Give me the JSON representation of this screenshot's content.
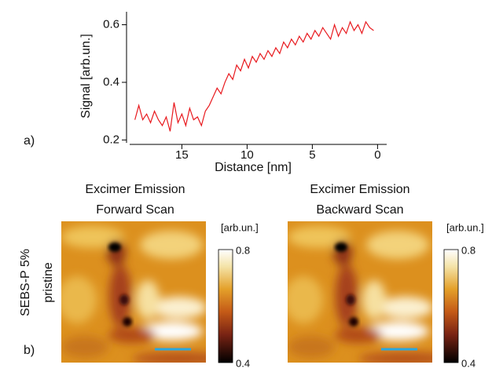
{
  "chart_data": {
    "type": "line",
    "ylabel": "Signal [arb.un.]",
    "xlabel": "Distance  [nm]",
    "x": [
      18.6,
      18.3,
      18.0,
      17.7,
      17.4,
      17.1,
      16.8,
      16.5,
      16.2,
      15.9,
      15.6,
      15.3,
      15.0,
      14.7,
      14.4,
      14.1,
      13.8,
      13.5,
      13.2,
      12.9,
      12.6,
      12.3,
      12.0,
      11.7,
      11.4,
      11.1,
      10.8,
      10.5,
      10.2,
      9.9,
      9.6,
      9.3,
      9.0,
      8.7,
      8.4,
      8.1,
      7.8,
      7.5,
      7.2,
      6.9,
      6.6,
      6.3,
      6.0,
      5.7,
      5.4,
      5.1,
      4.8,
      4.5,
      4.2,
      3.9,
      3.6,
      3.3,
      3.0,
      2.7,
      2.4,
      2.1,
      1.8,
      1.5,
      1.2,
      0.9,
      0.6,
      0.3
    ],
    "series": [
      {
        "color": "#e8191e",
        "values": [
          0.27,
          0.32,
          0.27,
          0.29,
          0.26,
          0.3,
          0.27,
          0.25,
          0.28,
          0.23,
          0.33,
          0.26,
          0.29,
          0.25,
          0.31,
          0.27,
          0.28,
          0.25,
          0.3,
          0.32,
          0.35,
          0.38,
          0.36,
          0.4,
          0.43,
          0.41,
          0.46,
          0.44,
          0.48,
          0.45,
          0.49,
          0.47,
          0.5,
          0.48,
          0.51,
          0.49,
          0.52,
          0.5,
          0.54,
          0.52,
          0.55,
          0.53,
          0.56,
          0.54,
          0.57,
          0.55,
          0.58,
          0.56,
          0.59,
          0.57,
          0.55,
          0.6,
          0.56,
          0.59,
          0.57,
          0.61,
          0.58,
          0.6,
          0.57,
          0.61,
          0.59,
          0.58
        ]
      }
    ],
    "xlim": [
      19,
      -0.7
    ],
    "ylim": [
      0.19,
      0.645
    ],
    "xticks": [
      15,
      10,
      5,
      0
    ],
    "yticks": [
      0.2,
      0.4,
      0.6
    ]
  },
  "figure": {
    "panel_a": "a)",
    "panel_b": "b)",
    "row_label": [
      "SEBS-P 5%",
      "pristine"
    ],
    "images": [
      {
        "title": [
          "Excimer Emission",
          "Forward Scan"
        ],
        "colorbar_unit": "[arb.un.]",
        "colorbar_max": "0.8",
        "colorbar_min": "0.4"
      },
      {
        "title": [
          "Excimer Emission",
          "Backward Scan"
        ],
        "colorbar_unit": "[arb.un.]",
        "colorbar_max": "0.8",
        "colorbar_min": "0.4"
      }
    ]
  }
}
